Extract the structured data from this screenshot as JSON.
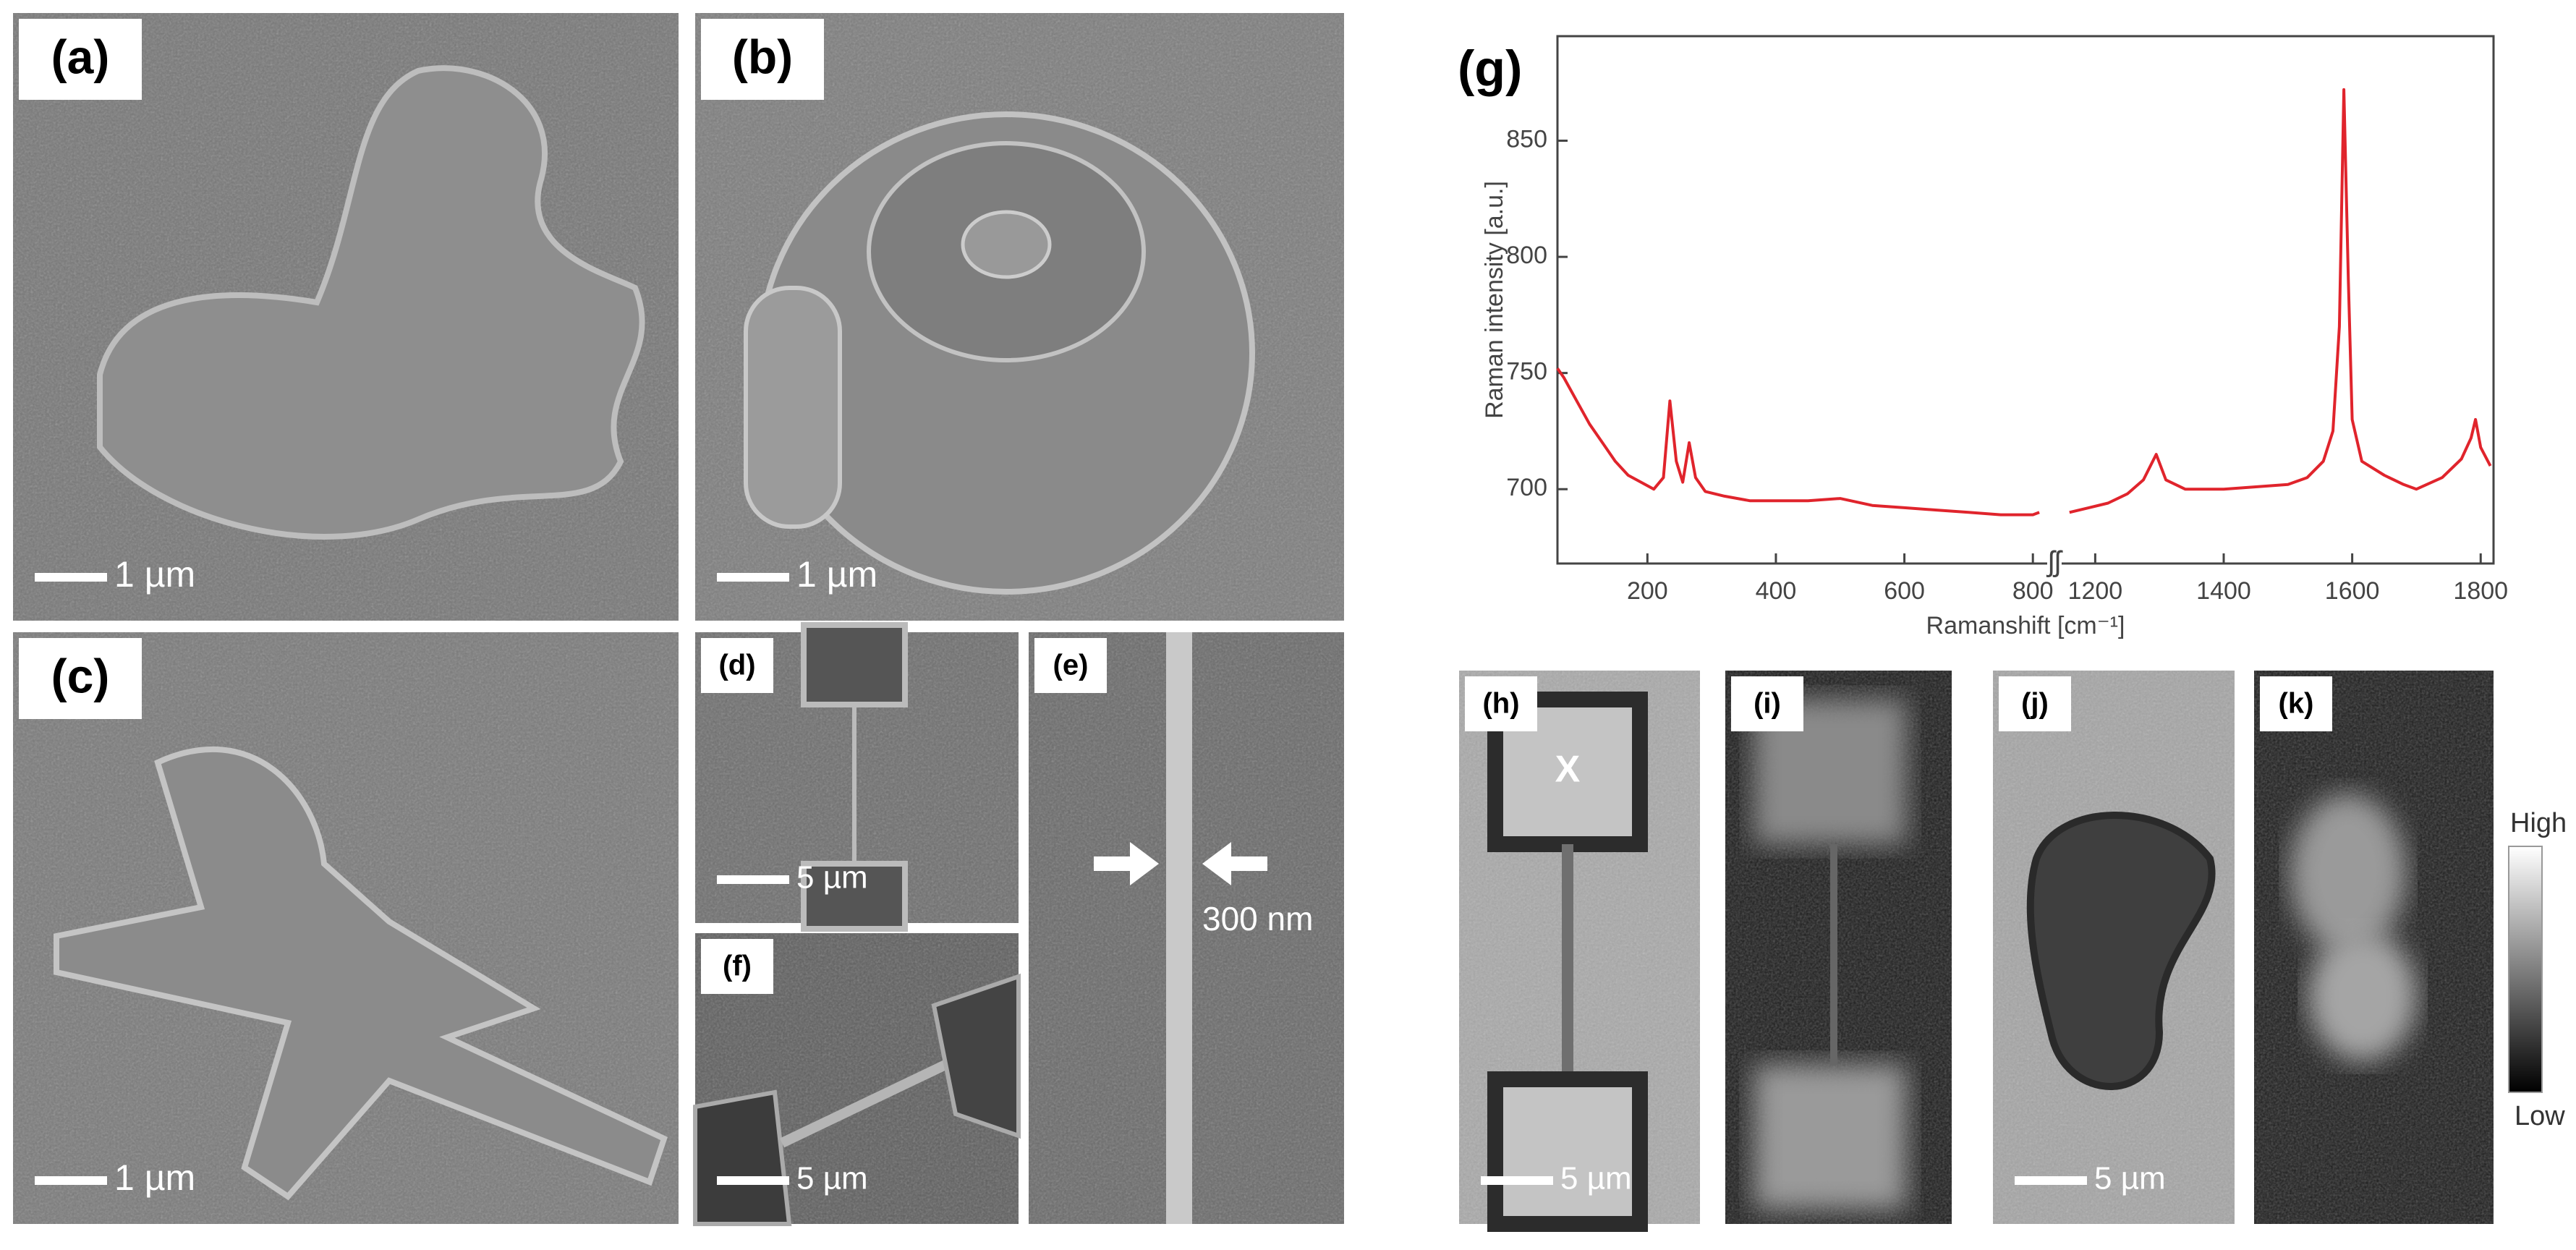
{
  "panels": [
    {
      "label": "(a)",
      "scale_bar": "1 µm"
    },
    {
      "label": "(b)",
      "scale_bar": "1 µm"
    },
    {
      "label": "(c)",
      "scale_bar": "1 µm"
    },
    {
      "label": "(d)",
      "scale_bar": "5 µm"
    },
    {
      "label": "(e)",
      "annotation": "300 nm"
    },
    {
      "label": "(f)",
      "scale_bar": "5 µm"
    },
    {
      "label": "(h)",
      "scale_bar": "5 µm",
      "marker": "X"
    },
    {
      "label": "(i)"
    },
    {
      "label": "(j)",
      "scale_bar": "5 µm"
    },
    {
      "label": "(k)"
    }
  ],
  "colorbar": {
    "high": "High",
    "low": "Low"
  },
  "chart_data": {
    "type": "line",
    "label": "(g)",
    "y_label": "Raman intensity [a.u.]",
    "x_label": "Ramanshift [cm⁻¹]",
    "axis_break_label": "ʃʃ",
    "color": "#e0242c",
    "xlim": [
      60,
      1820
    ],
    "x_break": [
      820,
      1150
    ],
    "ylim": [
      668,
      895
    ],
    "xticks": [
      200,
      400,
      600,
      800,
      1200,
      1400,
      1600,
      1800
    ],
    "yticks": [
      700,
      750,
      800,
      850
    ],
    "x": [
      60,
      70,
      90,
      110,
      130,
      150,
      170,
      190,
      210,
      225,
      235,
      245,
      255,
      265,
      275,
      290,
      320,
      360,
      400,
      450,
      500,
      550,
      600,
      650,
      700,
      750,
      800,
      810,
      null,
      1160,
      1190,
      1220,
      1250,
      1275,
      1295,
      1310,
      1340,
      1400,
      1450,
      1500,
      1530,
      1555,
      1570,
      1580,
      1587,
      1594,
      1600,
      1615,
      1650,
      1680,
      1700,
      1740,
      1770,
      1785,
      1792,
      1800,
      1815
    ],
    "values": [
      752,
      748,
      738,
      728,
      720,
      712,
      706,
      703,
      700,
      705,
      738,
      712,
      703,
      720,
      705,
      699,
      697,
      695,
      695,
      695,
      696,
      693,
      692,
      691,
      690,
      689,
      689,
      690,
      null,
      690,
      692,
      694,
      698,
      704,
      715,
      704,
      700,
      700,
      701,
      702,
      705,
      712,
      725,
      770,
      872,
      790,
      730,
      712,
      706,
      702,
      700,
      705,
      713,
      722,
      730,
      718,
      710
    ]
  }
}
